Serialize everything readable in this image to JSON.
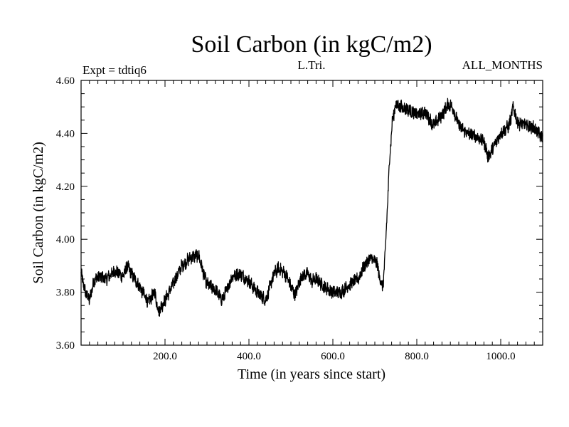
{
  "chart_data": {
    "type": "line",
    "title": "Soil Carbon (in kgC/m2)",
    "subtitle_left": "Expt = tdtiq6",
    "subtitle_center": "L.Tri.",
    "subtitle_right": "ALL_MONTHS",
    "xlabel": "Time (in years since start)",
    "ylabel": "Soil Carbon (in kgC/m2)",
    "xlim": [
      0,
      1100
    ],
    "ylim": [
      3.6,
      4.6
    ],
    "x_ticks": [
      200,
      400,
      600,
      800,
      1000
    ],
    "x_tick_labels": [
      "200.0",
      "400.0",
      "600.0",
      "800.0",
      "1000.0"
    ],
    "y_ticks": [
      3.6,
      3.8,
      4.0,
      4.2,
      4.4,
      4.6
    ],
    "y_tick_labels": [
      "3.60",
      "3.80",
      "4.00",
      "4.20",
      "4.40",
      "4.60"
    ],
    "grid": false,
    "series": [
      {
        "name": "Soil Carbon",
        "color": "#000000",
        "x": [
          0,
          10,
          20,
          30,
          40,
          60,
          80,
          100,
          110,
          120,
          140,
          150,
          160,
          175,
          185,
          200,
          210,
          225,
          240,
          260,
          280,
          290,
          300,
          320,
          335,
          345,
          360,
          380,
          400,
          420,
          440,
          460,
          470,
          480,
          490,
          500,
          510,
          525,
          540,
          550,
          560,
          580,
          600,
          620,
          640,
          660,
          675,
          690,
          705,
          712,
          720,
          728,
          735,
          742,
          750,
          760,
          780,
          800,
          820,
          840,
          860,
          875,
          885,
          900,
          920,
          940,
          960,
          970,
          980,
          1000,
          1020,
          1030,
          1040,
          1060,
          1080,
          1100
        ],
        "y": [
          3.87,
          3.8,
          3.77,
          3.84,
          3.86,
          3.85,
          3.88,
          3.86,
          3.9,
          3.87,
          3.82,
          3.79,
          3.76,
          3.8,
          3.73,
          3.77,
          3.8,
          3.85,
          3.9,
          3.93,
          3.94,
          3.88,
          3.83,
          3.81,
          3.77,
          3.8,
          3.86,
          3.87,
          3.84,
          3.8,
          3.77,
          3.87,
          3.89,
          3.88,
          3.86,
          3.82,
          3.79,
          3.86,
          3.87,
          3.84,
          3.85,
          3.82,
          3.8,
          3.8,
          3.83,
          3.85,
          3.9,
          3.93,
          3.91,
          3.85,
          3.82,
          4.05,
          4.3,
          4.45,
          4.51,
          4.5,
          4.49,
          4.47,
          4.48,
          4.43,
          4.47,
          4.51,
          4.5,
          4.43,
          4.4,
          4.39,
          4.37,
          4.31,
          4.34,
          4.4,
          4.43,
          4.5,
          4.44,
          4.43,
          4.42,
          4.38
        ]
      }
    ]
  }
}
